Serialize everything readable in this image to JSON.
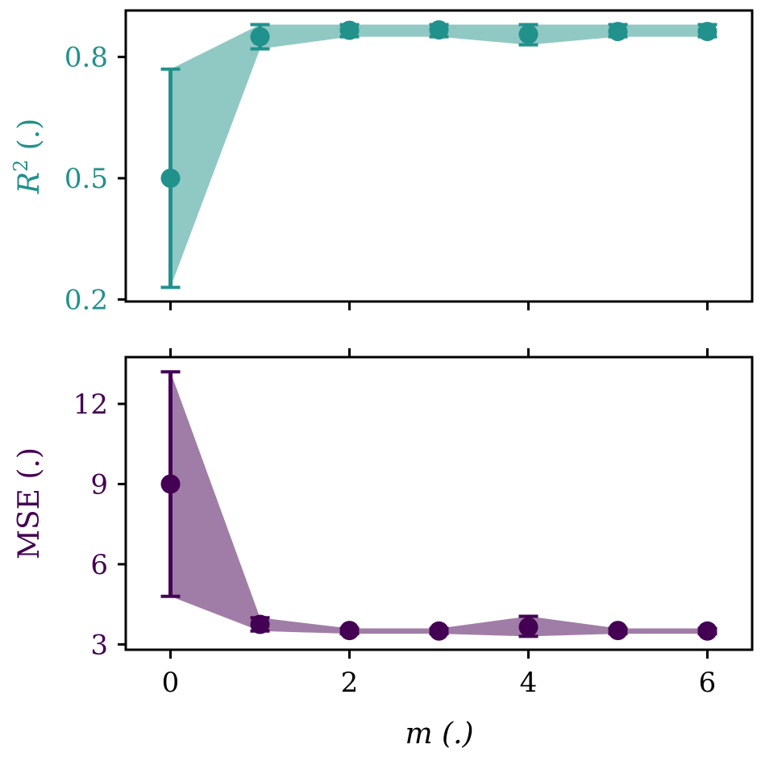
{
  "chart_data": [
    {
      "type": "line",
      "x": [
        0,
        1,
        2,
        3,
        4,
        5,
        6
      ],
      "series": [
        {
          "values": [
            0.5,
            0.85,
            0.866,
            0.867,
            0.856,
            0.863,
            0.863
          ],
          "err_low": [
            0.23,
            0.82,
            0.85,
            0.85,
            0.83,
            0.85,
            0.85
          ],
          "err_high": [
            0.77,
            0.88,
            0.88,
            0.88,
            0.88,
            0.88,
            0.88
          ],
          "color": "#21918c",
          "band_color": "#90c8c4"
        }
      ],
      "ylabel": "R² (.)",
      "ylabel_main": "R",
      "ylabel_sup": "2",
      "ylabel_tail": " (.)",
      "xlabel": "",
      "xlim": [
        -0.5,
        6.5
      ],
      "ylim": [
        0.195,
        0.915
      ],
      "yticks": [
        0.2,
        0.5,
        0.8
      ],
      "ytick_labels": [
        "0.2",
        "0.5",
        "0.8"
      ],
      "xticks": [
        0,
        2,
        4,
        6
      ],
      "show_x_tick_labels": false,
      "grid": false
    },
    {
      "type": "line",
      "x": [
        0,
        1,
        2,
        3,
        4,
        5,
        6
      ],
      "series": [
        {
          "values": [
            9.0,
            3.75,
            3.52,
            3.5,
            3.65,
            3.52,
            3.5
          ],
          "err_low": [
            4.8,
            3.5,
            3.4,
            3.4,
            3.3,
            3.4,
            3.4
          ],
          "err_high": [
            13.2,
            4.0,
            3.6,
            3.6,
            4.05,
            3.6,
            3.6
          ],
          "color": "#440154",
          "band_color": "#a07da6"
        }
      ],
      "ylabel": "MSE (.)",
      "xlabel": "m (.)",
      "xlim": [
        -0.5,
        6.5
      ],
      "ylim": [
        2.8,
        13.75
      ],
      "yticks": [
        3,
        6,
        9,
        12
      ],
      "ytick_labels": [
        "3",
        "6",
        "9",
        "12"
      ],
      "xticks": [
        0,
        2,
        4,
        6
      ],
      "xtick_labels": [
        "0",
        "2",
        "4",
        "6"
      ],
      "show_x_tick_labels": true,
      "grid": false
    }
  ]
}
